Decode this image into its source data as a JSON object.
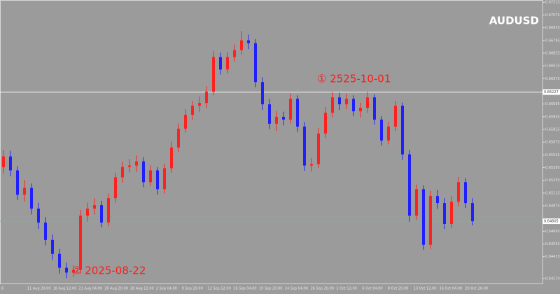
{
  "chart_data": {
    "type": "candlestick",
    "symbol": "AUDUSD",
    "up_color": "#ff2020",
    "down_color": "#2020ff",
    "ylim": [
      0.6412,
      0.6724
    ],
    "yticks": [
      0.67215,
      0.67075,
      0.66935,
      0.66795,
      0.66655,
      0.66515,
      0.66375,
      0.66095,
      0.65955,
      0.65815,
      0.65675,
      0.65535,
      0.65395,
      0.65255,
      0.65115,
      0.64975,
      0.64695,
      0.64555,
      0.64415,
      0.64174
    ],
    "hline": 0.66227,
    "bid": 0.64805,
    "time_labels": [
      "8",
      "11 Aug 20:00",
      "18 Aug 12:00",
      "21 Aug 04:00",
      "26 Aug 20:00",
      "28 Aug 12:00",
      "2 Sep 04:00",
      "9 Sep 20:00",
      "12 Sep 12:00",
      "16 Sep 04:00",
      "19 Sep 20:00",
      "24 Sep 04:00",
      "26 Sep 20:00",
      "1 Oct 12:00",
      "6 Oct 04:00",
      "8 Oct 20:00",
      "13 Oct 12:00",
      "16 Oct 04:00",
      "20 Oct 20:00"
    ],
    "open": [
      0.654,
      0.65518,
      0.65365,
      0.65097,
      0.65173,
      0.64944,
      0.64791,
      0.64599,
      0.64446,
      0.64293,
      0.6424,
      0.6427,
      0.64867,
      0.64944,
      0.64982,
      0.64791,
      0.65059,
      0.65288,
      0.65403,
      0.65418,
      0.65464,
      0.65235,
      0.65365,
      0.65158,
      0.65388,
      0.65617,
      0.65824,
      0.65977,
      0.66077,
      0.66107,
      0.6623,
      0.66612,
      0.66475,
      0.66612,
      0.66689,
      0.66796,
      0.66765,
      0.66337,
      0.66092,
      0.65878,
      0.65954,
      0.65924,
      0.66153,
      0.65847,
      0.65418,
      0.65434,
      0.6577,
      0.66,
      0.66168,
      0.66092,
      0.66153,
      0.66015,
      0.66054,
      0.66168,
      0.65924,
      0.65694,
      0.65847,
      0.66077,
      0.65541,
      0.64867,
      0.65158,
      0.64546,
      0.65082,
      0.65005,
      0.64775,
      0.6502,
      0.65235,
      0.65005
    ],
    "high": [
      0.6559,
      0.6558,
      0.6541,
      0.6526,
      0.6522,
      0.6501,
      0.6485,
      0.6466,
      0.645,
      0.6435,
      0.6432,
      0.6493,
      0.6501,
      0.6506,
      0.6503,
      0.6511,
      0.6534,
      0.6546,
      0.6549,
      0.6553,
      0.6551,
      0.6542,
      0.654,
      0.6544,
      0.6568,
      0.6588,
      0.6604,
      0.6613,
      0.6618,
      0.6629,
      0.6668,
      0.6666,
      0.6667,
      0.6675,
      0.669,
      0.6686,
      0.6681,
      0.6639,
      0.6615,
      0.6602,
      0.6601,
      0.6621,
      0.6619,
      0.659,
      0.655,
      0.6583,
      0.6606,
      0.6623,
      0.6622,
      0.6621,
      0.6619,
      0.6611,
      0.6623,
      0.662,
      0.6596,
      0.659,
      0.6613,
      0.6611,
      0.6559,
      0.6521,
      0.652,
      0.6514,
      0.6515,
      0.6506,
      0.6508,
      0.6529,
      0.6528,
      0.6506
    ],
    "low": [
      0.6533,
      0.653,
      0.6504,
      0.6502,
      0.6488,
      0.6472,
      0.6454,
      0.6438,
      0.6423,
      0.6418,
      0.6419,
      0.6423,
      0.648,
      0.6488,
      0.6474,
      0.6475,
      0.6501,
      0.6523,
      0.6534,
      0.6535,
      0.6518,
      0.6519,
      0.651,
      0.6511,
      0.6534,
      0.6557,
      0.6578,
      0.6592,
      0.6601,
      0.6605,
      0.6619,
      0.6642,
      0.6643,
      0.6656,
      0.6664,
      0.667,
      0.6628,
      0.6603,
      0.6582,
      0.658,
      0.6586,
      0.6588,
      0.6579,
      0.6536,
      0.6535,
      0.6539,
      0.6572,
      0.6595,
      0.6603,
      0.6604,
      0.6596,
      0.6595,
      0.66,
      0.6587,
      0.6564,
      0.6565,
      0.658,
      0.6548,
      0.648,
      0.6482,
      0.6449,
      0.645,
      0.6494,
      0.6472,
      0.6473,
      0.6497,
      0.6495,
      0.6476
    ],
    "close": [
      0.65518,
      0.65365,
      0.65097,
      0.65173,
      0.64944,
      0.64791,
      0.64599,
      0.64446,
      0.64293,
      0.6424,
      0.6427,
      0.64867,
      0.64944,
      0.64982,
      0.64791,
      0.65059,
      0.65288,
      0.65403,
      0.65418,
      0.65464,
      0.65235,
      0.65365,
      0.65158,
      0.65388,
      0.65617,
      0.65824,
      0.65977,
      0.66077,
      0.66107,
      0.6623,
      0.66612,
      0.66475,
      0.66612,
      0.66689,
      0.66796,
      0.66765,
      0.66337,
      0.66092,
      0.65878,
      0.65954,
      0.65924,
      0.66153,
      0.65847,
      0.65418,
      0.65434,
      0.6577,
      0.66,
      0.66168,
      0.66092,
      0.66153,
      0.66015,
      0.66054,
      0.66168,
      0.65924,
      0.65694,
      0.65847,
      0.66077,
      0.65541,
      0.64867,
      0.65158,
      0.64546,
      0.65082,
      0.65005,
      0.64775,
      0.6502,
      0.65235,
      0.65005,
      0.64805
    ],
    "annotations": [
      {
        "text": "① 2525-10-01",
        "x_index": 46,
        "value": 0.6637
      },
      {
        "text": "② 2025-08-22",
        "x_index": 11,
        "value": 0.6426
      }
    ]
  }
}
